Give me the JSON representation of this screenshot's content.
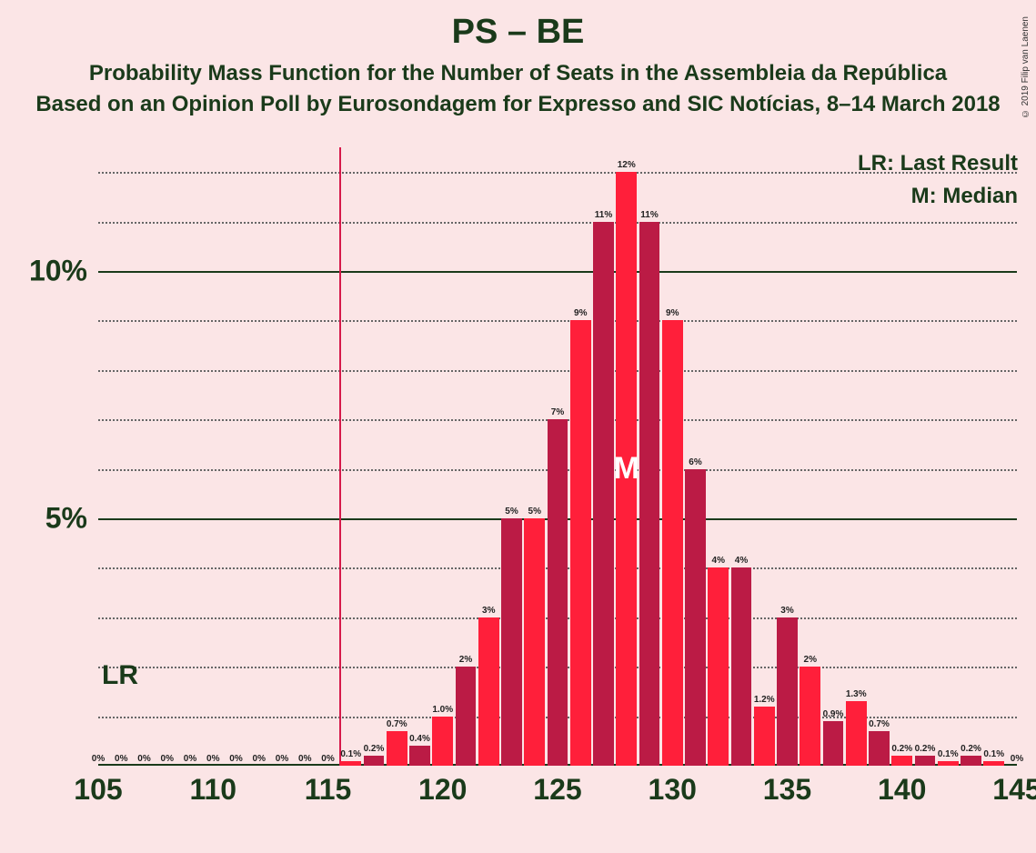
{
  "background_color": "#fbe5e6",
  "text_color": "#1a3a1a",
  "copyright": "© 2019 Filip van Laenen",
  "titles": {
    "main": "PS – BE",
    "sub": "Probability Mass Function for the Number of Seats in the Assembleia da República",
    "source": "Based on an Opinion Poll by Eurosondagem for Expresso and SIC Notícias, 8–14 March 2018"
  },
  "legend": {
    "lr": "LR: Last Result",
    "m": "M: Median"
  },
  "chart": {
    "type": "bar",
    "xlim": [
      105,
      145
    ],
    "ylim": [
      0,
      12.5
    ],
    "y_major_ticks": [
      5,
      10
    ],
    "y_minor_step": 1,
    "x_major_step": 5,
    "bar_colors": [
      "#bb1b45",
      "#ff1f3a"
    ],
    "grid_major_color": "#1a3a1a",
    "grid_minor_color": "#666666",
    "lr_line_color": "#d6194a",
    "lr_value": 115.5,
    "lr_label": "LR",
    "median_value": 128,
    "median_label": "M",
    "bar_width_ratio": 0.9,
    "bars": [
      {
        "x": 105,
        "v": 0,
        "label": "0%"
      },
      {
        "x": 106,
        "v": 0,
        "label": "0%"
      },
      {
        "x": 107,
        "v": 0,
        "label": "0%"
      },
      {
        "x": 108,
        "v": 0,
        "label": "0%"
      },
      {
        "x": 109,
        "v": 0,
        "label": "0%"
      },
      {
        "x": 110,
        "v": 0,
        "label": "0%"
      },
      {
        "x": 111,
        "v": 0,
        "label": "0%"
      },
      {
        "x": 112,
        "v": 0,
        "label": "0%"
      },
      {
        "x": 113,
        "v": 0,
        "label": "0%"
      },
      {
        "x": 114,
        "v": 0,
        "label": "0%"
      },
      {
        "x": 115,
        "v": 0,
        "label": "0%"
      },
      {
        "x": 116,
        "v": 0.1,
        "label": "0.1%"
      },
      {
        "x": 117,
        "v": 0.2,
        "label": "0.2%"
      },
      {
        "x": 118,
        "v": 0.7,
        "label": "0.7%"
      },
      {
        "x": 119,
        "v": 0.4,
        "label": "0.4%"
      },
      {
        "x": 120,
        "v": 1.0,
        "label": "1.0%"
      },
      {
        "x": 121,
        "v": 2,
        "label": "2%"
      },
      {
        "x": 122,
        "v": 3,
        "label": "3%"
      },
      {
        "x": 123,
        "v": 5,
        "label": "5%"
      },
      {
        "x": 124,
        "v": 5,
        "label": "5%"
      },
      {
        "x": 125,
        "v": 7,
        "label": "7%"
      },
      {
        "x": 126,
        "v": 9,
        "label": "9%"
      },
      {
        "x": 127,
        "v": 11,
        "label": "11%"
      },
      {
        "x": 128,
        "v": 12,
        "label": "12%"
      },
      {
        "x": 129,
        "v": 11,
        "label": "11%"
      },
      {
        "x": 130,
        "v": 9,
        "label": "9%"
      },
      {
        "x": 131,
        "v": 6,
        "label": "6%"
      },
      {
        "x": 132,
        "v": 4,
        "label": "4%"
      },
      {
        "x": 133,
        "v": 4,
        "label": "4%"
      },
      {
        "x": 134,
        "v": 1.2,
        "label": "1.2%"
      },
      {
        "x": 135,
        "v": 3,
        "label": "3%"
      },
      {
        "x": 136,
        "v": 2,
        "label": "2%"
      },
      {
        "x": 137,
        "v": 0.9,
        "label": "0.9%"
      },
      {
        "x": 138,
        "v": 1.3,
        "label": "1.3%"
      },
      {
        "x": 139,
        "v": 0.7,
        "label": "0.7%"
      },
      {
        "x": 140,
        "v": 0.2,
        "label": "0.2%"
      },
      {
        "x": 141,
        "v": 0.2,
        "label": "0.2%"
      },
      {
        "x": 142,
        "v": 0.1,
        "label": "0.1%"
      },
      {
        "x": 143,
        "v": 0.2,
        "label": "0.2%"
      },
      {
        "x": 144,
        "v": 0.1,
        "label": "0.1%"
      },
      {
        "x": 145,
        "v": 0,
        "label": "0%"
      }
    ]
  }
}
